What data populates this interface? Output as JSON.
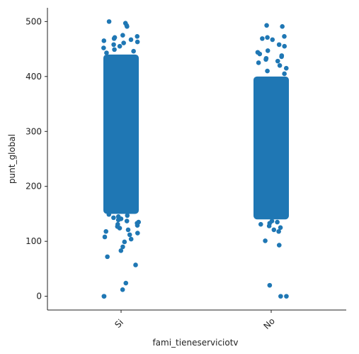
{
  "chart_data": {
    "type": "scatter",
    "subtype": "strip",
    "title": "",
    "xlabel": "fami_tieneserviciotv",
    "ylabel": "punt_global",
    "categories": [
      "Si",
      "No"
    ],
    "ylim": [
      -25,
      525
    ],
    "yticks": [
      0,
      100,
      200,
      300,
      400,
      500
    ],
    "grid": false,
    "legend": "none",
    "point_color": "#1f77b4",
    "series": [
      {
        "category": "Si",
        "dense_range": [
          150,
          440
        ],
        "points": [
          0,
          0,
          12,
          24,
          57,
          72,
          83,
          90,
          99,
          104,
          108,
          112,
          115,
          118,
          121,
          124,
          127,
          129,
          131,
          133,
          135,
          137,
          139,
          141,
          143,
          145,
          147,
          149,
          443,
          446,
          449,
          452,
          455,
          458,
          461,
          463,
          465,
          467,
          469,
          471,
          473,
          475,
          491,
          493,
          497,
          500
        ]
      },
      {
        "category": "No",
        "dense_range": [
          140,
          400
        ],
        "points": [
          0,
          0,
          20,
          93,
          101,
          118,
          121,
          125,
          128,
          131,
          133,
          135,
          137,
          405,
          410,
          415,
          420,
          425,
          428,
          431,
          433,
          436,
          438,
          441,
          444,
          447,
          455,
          458,
          467,
          469,
          471,
          473,
          491,
          493
        ]
      }
    ]
  }
}
